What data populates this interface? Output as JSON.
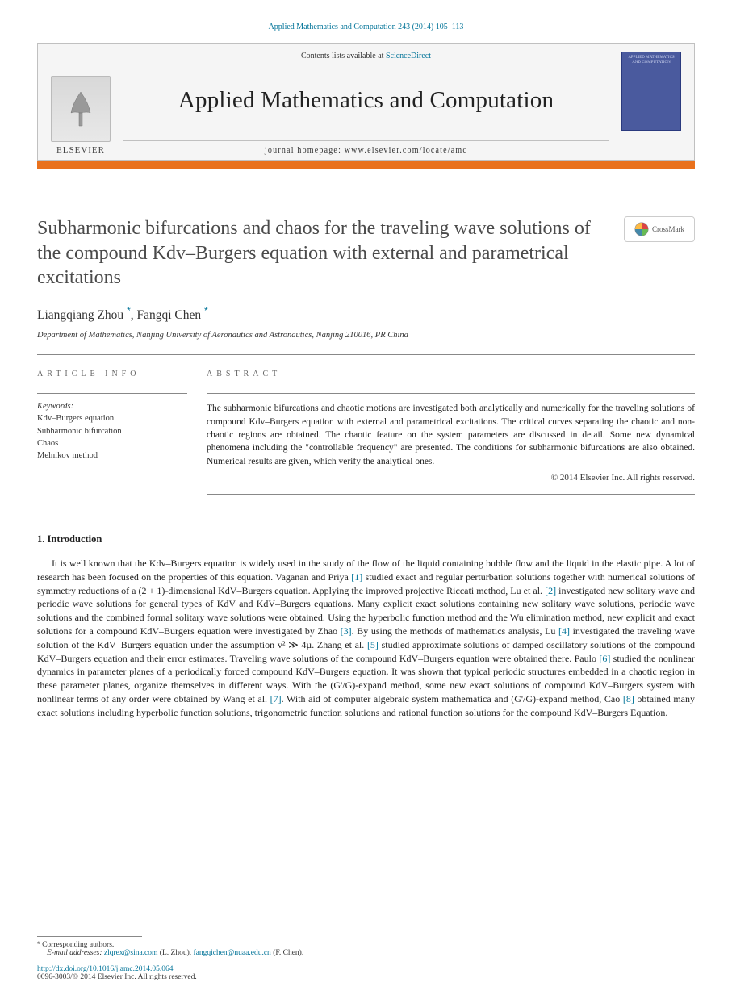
{
  "journal_citation": {
    "text": "Applied Mathematics and Computation 243 (2014) 105–113"
  },
  "banner": {
    "elsevier_word": "ELSEVIER",
    "contents_prefix": "Contents lists available at ",
    "contents_link": "ScienceDirect",
    "journal_name": "Applied Mathematics and Computation",
    "homepage_label": "journal homepage: ",
    "homepage_url": "www.elsevier.com/locate/amc",
    "cover_text": "APPLIED MATHEMATICS AND COMPUTATION"
  },
  "crossmark_label": "CrossMark",
  "title": "Subharmonic bifurcations and chaos for the traveling wave solutions of the compound Kdv–Burgers equation with external and parametrical excitations",
  "authors": {
    "a1": "Liangqiang Zhou",
    "a2": "Fangqi Chen",
    "sep": ", ",
    "marker": "*"
  },
  "affiliation": "Department of Mathematics, Nanjing University of Aeronautics and Astronautics, Nanjing 210016, PR China",
  "info": {
    "section_label": "article info",
    "keywords_label": "Keywords:",
    "keywords": [
      "Kdv–Burgers equation",
      "Subharmonic bifurcation",
      "Chaos",
      "Melnikov method"
    ]
  },
  "abstract": {
    "section_label": "abstract",
    "text": "The subharmonic bifurcations and chaotic motions are investigated both analytically and numerically for the traveling solutions of compound Kdv–Burgers equation with external and parametrical excitations. The critical curves separating the chaotic and non-chaotic regions are obtained. The chaotic feature on the system parameters are discussed in detail. Some new dynamical phenomena including the \"controllable frequency\" are presented. The conditions for subharmonic bifurcations are also obtained. Numerical results are given, which verify the analytical ones.",
    "copyright": "© 2014 Elsevier Inc. All rights reserved."
  },
  "section1": {
    "heading": "1. Introduction",
    "para": "It is well known that the Kdv–Burgers equation is widely used in the study of the flow of the liquid containing bubble flow and the liquid in the elastic pipe. A lot of research has been focused on the properties of this equation. Vaganan and Priya [1] studied exact and regular perturbation solutions together with numerical solutions of symmetry reductions of a (2 + 1)-dimensional KdV–Burgers equation. Applying the improved projective Riccati method, Lu et al. [2] investigated new solitary wave and periodic wave solutions for general types of KdV and KdV–Burgers equations. Many explicit exact solutions containing new solitary wave solutions, periodic wave solutions and the combined formal solitary wave solutions were obtained. Using the hyperbolic function method and the Wu elimination method, new explicit and exact solutions for a compound KdV–Burgers equation were investigated by Zhao [3]. By using the methods of mathematics analysis, Lu [4] investigated the traveling wave solution of the KdV–Burgers equation under the assumption v² ≫ 4µ. Zhang et al. [5] studied approximate solutions of damped oscillatory solutions of the compound KdV–Burgers equation and their error estimates. Traveling wave solutions of the compound KdV–Burgers equation were obtained there. Paulo [6] studied the nonlinear dynamics in parameter planes of a periodically forced compound KdV–Burgers equation. It was shown that typical periodic structures embedded in a chaotic region in these parameter planes, organize themselves in different ways. With the (G'/G)-expand method, some new exact solutions of compound KdV–Burgers system with nonlinear terms of any order were obtained by Wang et al. [7]. With aid of computer algebraic system mathematica and (G'/G)-expand method, Cao [8] obtained many exact solutions including hyperbolic function solutions, trigonometric function solutions and rational function solutions for the compound KdV–Burgers Equation.",
    "refs": [
      "[1]",
      "[2]",
      "[3]",
      "[4]",
      "[5]",
      "[6]",
      "[7]",
      "[8]"
    ]
  },
  "footnotes": {
    "corresponding": "Corresponding authors.",
    "email_label": "E-mail addresses: ",
    "email1": "zlqrex@sina.com",
    "email1_name": " (L. Zhou), ",
    "email2": "fangqichen@nuaa.edu.cn",
    "email2_name": " (F. Chen).",
    "doi": "http://dx.doi.org/10.1016/j.amc.2014.05.064",
    "issn_rights": "0096-3003/© 2014 Elsevier Inc. All rights reserved."
  },
  "colors": {
    "link": "#007398",
    "orange": "#e9711c",
    "cover_bg": "#4a5a9e",
    "text": "#222222",
    "heading_gray": "#4a4a4a"
  }
}
